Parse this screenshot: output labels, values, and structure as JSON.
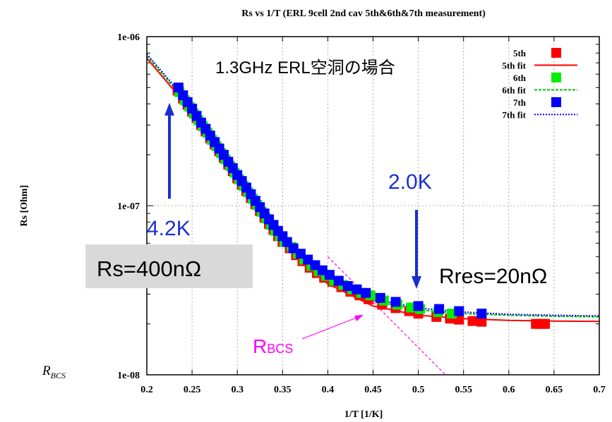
{
  "chart_data": {
    "type": "scatter",
    "title": "Rs vs 1/T (ERL 9cell 2nd cav 5th&6th&7th measurement)",
    "xlabel": "1/T [1/K]",
    "ylabel": "Rs [Ohm]",
    "xlim": [
      0.2,
      0.7
    ],
    "ylim": [
      1e-08,
      1e-06
    ],
    "yscale": "log",
    "grid": true,
    "legend_position": "top-right",
    "xticks": [
      "0.2",
      "0.25",
      "0.3",
      "0.35",
      "0.4",
      "0.45",
      "0.5",
      "0.55",
      "0.6",
      "0.65",
      "0.7"
    ],
    "yticks": [
      "1e-08",
      "1e-07",
      "1e-06"
    ],
    "series": [
      {
        "name": "5th",
        "kind": "points",
        "color": "#ff0000",
        "x": [
          0.234,
          0.24,
          0.245,
          0.25,
          0.255,
          0.26,
          0.265,
          0.27,
          0.275,
          0.28,
          0.285,
          0.29,
          0.295,
          0.3,
          0.305,
          0.31,
          0.315,
          0.32,
          0.325,
          0.33,
          0.335,
          0.34,
          0.345,
          0.35,
          0.358,
          0.365,
          0.372,
          0.38,
          0.388,
          0.396,
          0.405,
          0.415,
          0.425,
          0.435,
          0.445,
          0.46,
          0.475,
          0.49,
          0.5,
          0.52,
          0.535,
          0.545,
          0.56,
          0.57,
          0.63,
          0.635,
          0.64
        ],
        "y": [
          4.8e-07,
          4.3e-07,
          3.95e-07,
          3.6e-07,
          3.3e-07,
          3e-07,
          2.75e-07,
          2.5e-07,
          2.3e-07,
          2.1e-07,
          1.92e-07,
          1.75e-07,
          1.6e-07,
          1.45e-07,
          1.33e-07,
          1.22e-07,
          1.11e-07,
          1.02e-07,
          9.3e-08,
          8.5e-08,
          7.8e-08,
          7.2e-08,
          6.6e-08,
          6.1e-08,
          5.6e-08,
          5.1e-08,
          4.7e-08,
          4.3e-08,
          4e-08,
          3.75e-08,
          3.55e-08,
          3.3e-08,
          3.1e-08,
          2.95e-08,
          2.8e-08,
          2.6e-08,
          2.48e-08,
          2.38e-08,
          2.3e-08,
          2.2e-08,
          2.15e-08,
          2.12e-08,
          2.08e-08,
          2.06e-08,
          2e-08,
          2e-08,
          2e-08
        ]
      },
      {
        "name": "5th fit",
        "kind": "line",
        "color": "#ff0000",
        "x": [
          0.2,
          0.25,
          0.3,
          0.35,
          0.4,
          0.45,
          0.5,
          0.55,
          0.6,
          0.65,
          0.7
        ],
        "y": [
          7.45e-07,
          3.6e-07,
          1.5e-07,
          6e-08,
          3.45e-08,
          2.55e-08,
          2.25e-08,
          2.15e-08,
          2.1e-08,
          2.08e-08,
          2.07e-08
        ]
      },
      {
        "name": "6th",
        "kind": "points",
        "color": "#00ee00",
        "x": [
          0.236,
          0.242,
          0.247,
          0.252,
          0.257,
          0.262,
          0.267,
          0.272,
          0.277,
          0.282,
          0.287,
          0.292,
          0.297,
          0.302,
          0.307,
          0.312,
          0.317,
          0.322,
          0.327,
          0.332,
          0.337,
          0.342,
          0.347,
          0.352,
          0.36,
          0.367,
          0.374,
          0.382,
          0.39,
          0.398,
          0.407,
          0.417,
          0.427,
          0.437,
          0.447,
          0.462,
          0.477,
          0.492,
          0.502,
          0.522,
          0.537
        ],
        "y": [
          4.7e-07,
          4.2e-07,
          3.85e-07,
          3.5e-07,
          3.2e-07,
          2.95e-07,
          2.7e-07,
          2.45e-07,
          2.25e-07,
          2.05e-07,
          1.88e-07,
          1.72e-07,
          1.57e-07,
          1.43e-07,
          1.31e-07,
          1.2e-07,
          1.1e-07,
          1.01e-07,
          9.2e-08,
          8.4e-08,
          7.7e-08,
          7.1e-08,
          6.6e-08,
          6.1e-08,
          5.7e-08,
          5.2e-08,
          4.8e-08,
          4.4e-08,
          4.1e-08,
          3.85e-08,
          3.6e-08,
          3.4e-08,
          3.2e-08,
          3.05e-08,
          2.95e-08,
          2.75e-08,
          2.6e-08,
          2.5e-08,
          2.45e-08,
          2.35e-08,
          2.3e-08
        ]
      },
      {
        "name": "6th fit",
        "kind": "line",
        "color": "#00c000",
        "x": [
          0.2,
          0.25,
          0.3,
          0.35,
          0.4,
          0.45,
          0.5,
          0.55,
          0.6,
          0.65,
          0.7
        ],
        "y": [
          7.7e-07,
          3.75e-07,
          1.56e-07,
          6.3e-08,
          3.65e-08,
          2.75e-08,
          2.42e-08,
          2.3e-08,
          2.25e-08,
          2.22e-08,
          2.2e-08
        ]
      },
      {
        "name": "7th",
        "kind": "points",
        "color": "#0000ff",
        "x": [
          0.235,
          0.24,
          0.245,
          0.25,
          0.255,
          0.26,
          0.265,
          0.27,
          0.275,
          0.28,
          0.285,
          0.29,
          0.295,
          0.3,
          0.305,
          0.31,
          0.315,
          0.32,
          0.325,
          0.33,
          0.335,
          0.34,
          0.345,
          0.35,
          0.355,
          0.362,
          0.37,
          0.378,
          0.386,
          0.394,
          0.402,
          0.412,
          0.422,
          0.432,
          0.442,
          0.458,
          0.475,
          0.5,
          0.523,
          0.545,
          0.57
        ],
        "y": [
          5e-07,
          4.5e-07,
          4.1e-07,
          3.75e-07,
          3.4e-07,
          3.1e-07,
          2.85e-07,
          2.6e-07,
          2.38e-07,
          2.18e-07,
          2e-07,
          1.82e-07,
          1.67e-07,
          1.52e-07,
          1.4e-07,
          1.28e-07,
          1.17e-07,
          1.07e-07,
          9.8e-08,
          9e-08,
          8.3e-08,
          7.7e-08,
          7.1e-08,
          6.6e-08,
          6.1e-08,
          5.6e-08,
          5.2e-08,
          4.8e-08,
          4.45e-08,
          4.15e-08,
          3.9e-08,
          3.6e-08,
          3.35e-08,
          3.2e-08,
          3.05e-08,
          2.85e-08,
          2.7e-08,
          2.55e-08,
          2.45e-08,
          2.38e-08,
          2.3e-08
        ]
      },
      {
        "name": "7th fit",
        "kind": "line",
        "color": "#0000ff",
        "x": [
          0.2,
          0.25,
          0.3,
          0.35,
          0.4,
          0.45,
          0.5,
          0.55,
          0.6,
          0.65,
          0.7
        ],
        "y": [
          7.9e-07,
          3.85e-07,
          1.6e-07,
          6.5e-08,
          3.75e-08,
          2.82e-08,
          2.48e-08,
          2.35e-08,
          2.28e-08,
          2.25e-08,
          2.23e-08
        ]
      }
    ],
    "rbcs_line": {
      "color": "#ff00ff",
      "x": [
        0.4,
        0.53
      ],
      "y": [
        5e-08,
        1e-08
      ]
    },
    "annotations": {
      "cavity": "1.3GHz ERL空洞の場合",
      "temp_high": "4.2K",
      "temp_low": "2.0K",
      "rs_box": "Rs=400nΩ",
      "rres": "Rres=20nΩ",
      "rbcs_main": "R",
      "rbcs_sub": "BCS",
      "rbcs_axis_main": "R",
      "rbcs_axis_sub": "BCS"
    }
  }
}
